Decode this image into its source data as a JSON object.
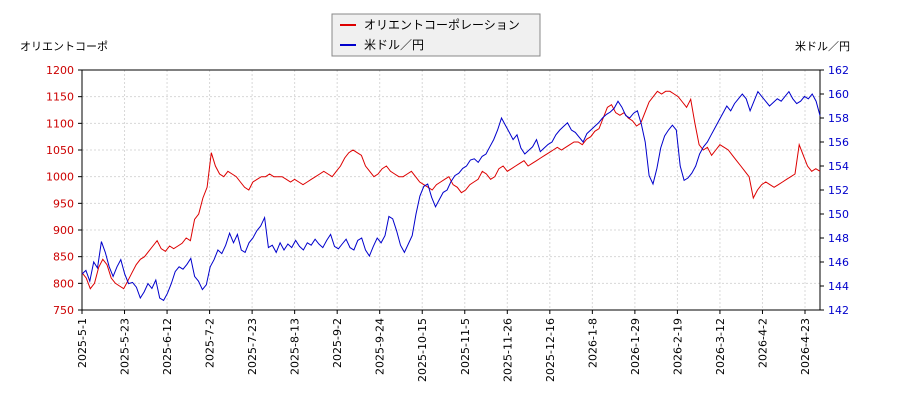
{
  "chart_data": {
    "type": "line",
    "left_axis_label": "オリエントコーポ",
    "right_axis_label": "米ドル／円",
    "left_ylim": [
      750,
      1200
    ],
    "right_ylim": [
      142,
      162
    ],
    "left_ticks": [
      "750",
      "800",
      "850",
      "900",
      "950",
      "1000",
      "1050",
      "1100",
      "1150",
      "1200"
    ],
    "right_ticks": [
      "142",
      "144",
      "146",
      "148",
      "150",
      "152",
      "154",
      "156",
      "158",
      "160",
      "162"
    ],
    "x_ticks": [
      "2025-5-1",
      "2025-5-23",
      "2025-6-12",
      "2025-7-2",
      "2025-7-23",
      "2025-8-13",
      "2025-9-2",
      "2025-9-24",
      "2025-10-15",
      "2025-11-5",
      "2025-11-26",
      "2025-12-16",
      "2026-1-8",
      "2026-1-29",
      "2026-2-19",
      "2026-3-12",
      "2026-4-2",
      "2026-4-23"
    ],
    "grid": true,
    "legend_position": "top-center",
    "series": [
      {
        "name": "オリエントコーポレーション",
        "axis": "left",
        "color": "#dd0000",
        "x_start": 0,
        "x_end": 1,
        "values": [
          820,
          810,
          790,
          800,
          830,
          845,
          835,
          810,
          800,
          795,
          790,
          805,
          820,
          835,
          845,
          850,
          860,
          870,
          880,
          865,
          860,
          870,
          865,
          870,
          875,
          885,
          880,
          920,
          930,
          960,
          980,
          1045,
          1020,
          1005,
          1000,
          1010,
          1005,
          1000,
          990,
          980,
          975,
          990,
          995,
          1000,
          1000,
          1005,
          1000,
          1000,
          1000,
          995,
          990,
          995,
          990,
          985,
          990,
          995,
          1000,
          1005,
          1010,
          1005,
          1000,
          1010,
          1020,
          1035,
          1045,
          1050,
          1045,
          1040,
          1020,
          1010,
          1000,
          1005,
          1015,
          1020,
          1010,
          1005,
          1000,
          1000,
          1005,
          1010,
          1000,
          990,
          985,
          980,
          975,
          985,
          990,
          995,
          1000,
          985,
          980,
          970,
          975,
          985,
          990,
          995,
          1010,
          1005,
          995,
          1000,
          1015,
          1020,
          1010,
          1015,
          1020,
          1025,
          1030,
          1020,
          1025,
          1030,
          1035,
          1040,
          1045,
          1050,
          1055,
          1050,
          1055,
          1060,
          1065,
          1065,
          1060,
          1070,
          1075,
          1085,
          1090,
          1110,
          1130,
          1135,
          1120,
          1115,
          1120,
          1110,
          1105,
          1095,
          1100,
          1120,
          1140,
          1150,
          1160,
          1155,
          1160,
          1160,
          1155,
          1150,
          1140,
          1130,
          1145,
          1100,
          1060,
          1050,
          1055,
          1040,
          1050,
          1060,
          1055,
          1050,
          1040,
          1030,
          1020,
          1010,
          1000,
          960,
          975,
          985,
          990,
          985,
          980,
          985,
          990,
          995,
          1000,
          1005,
          1060,
          1040,
          1020,
          1010,
          1015,
          1010
        ]
      },
      {
        "name": "米ドル／円",
        "axis": "right",
        "color": "#0000cc",
        "x_start": 0,
        "x_end": 1,
        "values": [
          145.0,
          145.3,
          144.4,
          146.0,
          145.5,
          147.7,
          146.8,
          145.6,
          144.8,
          145.6,
          146.2,
          145.0,
          144.2,
          144.3,
          143.9,
          143.0,
          143.5,
          144.2,
          143.8,
          144.5,
          143.0,
          142.8,
          143.4,
          144.2,
          145.2,
          145.6,
          145.4,
          145.8,
          146.3,
          144.8,
          144.4,
          143.7,
          144.1,
          145.6,
          146.2,
          147.0,
          146.7,
          147.4,
          148.4,
          147.6,
          148.3,
          147.0,
          146.8,
          147.6,
          148.0,
          148.6,
          149.0,
          149.7,
          147.2,
          147.4,
          146.8,
          147.6,
          147.0,
          147.5,
          147.2,
          147.8,
          147.3,
          147.0,
          147.6,
          147.4,
          147.9,
          147.5,
          147.2,
          147.8,
          148.3,
          147.3,
          147.1,
          147.5,
          147.9,
          147.2,
          147.0,
          147.8,
          148.0,
          147.0,
          146.5,
          147.3,
          148.0,
          147.6,
          148.2,
          149.8,
          149.6,
          148.6,
          147.4,
          146.8,
          147.5,
          148.2,
          150.0,
          151.5,
          152.3,
          152.5,
          151.4,
          150.6,
          151.2,
          151.8,
          152.0,
          152.7,
          153.2,
          153.4,
          153.8,
          154.0,
          154.5,
          154.6,
          154.3,
          154.8,
          155.0,
          155.6,
          156.2,
          157.0,
          158.0,
          157.4,
          156.8,
          156.2,
          156.6,
          155.5,
          155.0,
          155.3,
          155.6,
          156.2,
          155.2,
          155.5,
          155.8,
          156.0,
          156.6,
          157.0,
          157.3,
          157.6,
          157.0,
          156.8,
          156.4,
          156.0,
          156.7,
          157.0,
          157.3,
          157.6,
          158.0,
          158.3,
          158.5,
          158.8,
          159.4,
          158.9,
          158.2,
          158.0,
          158.4,
          158.6,
          157.5,
          156.0,
          153.2,
          152.5,
          153.8,
          155.5,
          156.5,
          157.0,
          157.4,
          157.0,
          154.0,
          152.8,
          153.0,
          153.4,
          154.0,
          155.0,
          155.6,
          156.0,
          156.6,
          157.2,
          157.8,
          158.4,
          159.0,
          158.6,
          159.2,
          159.6,
          160.0,
          159.6,
          158.6,
          159.4,
          160.2,
          159.8,
          159.4,
          159.0,
          159.3,
          159.6,
          159.4,
          159.8,
          160.2,
          159.6,
          159.2,
          159.4,
          159.8,
          159.6,
          160.0,
          159.4,
          158.2
        ]
      }
    ]
  }
}
